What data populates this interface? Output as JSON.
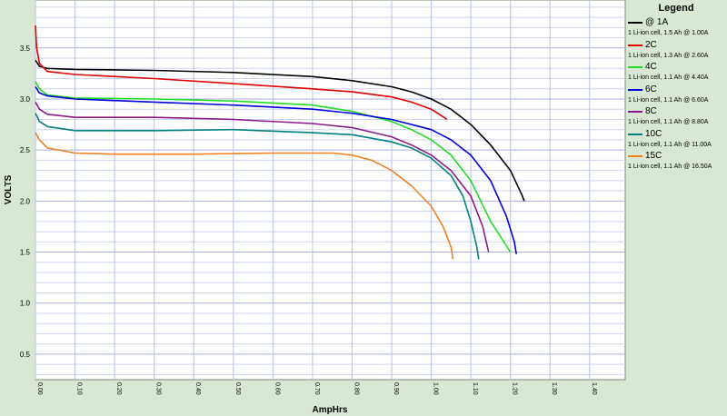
{
  "chart_data": {
    "type": "line",
    "title": "",
    "xlabel": "AmpHrs",
    "ylabel": "VOLTS",
    "xlim": [
      0.0,
      1.49
    ],
    "ylim": [
      0.25,
      3.97
    ],
    "x_ticks": [
      "0.00",
      "0.10",
      "0.20",
      "0.30",
      "0.40",
      "0.50",
      "0.60",
      "0.70",
      "0.80",
      "0.90",
      "1.00",
      "1.10",
      "1.20",
      "1.30",
      "1.40"
    ],
    "y_ticks": [
      "0.5",
      "1.0",
      "1.5",
      "2.0",
      "2.5",
      "3.0",
      "3.5"
    ],
    "grid": true,
    "legend_title": "Legend",
    "legend_position": "right",
    "series": [
      {
        "name": "@ 1A",
        "desc": "1 Li-ion cell, 1.5 Ah @ 1.00A",
        "color": "#000000",
        "points": [
          [
            0.0,
            3.38
          ],
          [
            0.01,
            3.32
          ],
          [
            0.03,
            3.3
          ],
          [
            0.1,
            3.29
          ],
          [
            0.3,
            3.28
          ],
          [
            0.5,
            3.26
          ],
          [
            0.7,
            3.22
          ],
          [
            0.8,
            3.18
          ],
          [
            0.9,
            3.12
          ],
          [
            0.95,
            3.07
          ],
          [
            1.0,
            3.0
          ],
          [
            1.05,
            2.9
          ],
          [
            1.1,
            2.75
          ],
          [
            1.15,
            2.55
          ],
          [
            1.2,
            2.3
          ],
          [
            1.23,
            2.05
          ],
          [
            1.235,
            2.0
          ]
        ]
      },
      {
        "name": "2C",
        "desc": "1 Li-ion cell, 1.3 Ah @ 2.60A",
        "color": "#e00000",
        "points": [
          [
            0.0,
            3.72
          ],
          [
            0.003,
            3.5
          ],
          [
            0.01,
            3.35
          ],
          [
            0.03,
            3.27
          ],
          [
            0.1,
            3.24
          ],
          [
            0.3,
            3.2
          ],
          [
            0.5,
            3.15
          ],
          [
            0.7,
            3.1
          ],
          [
            0.8,
            3.07
          ],
          [
            0.9,
            3.02
          ],
          [
            0.95,
            2.97
          ],
          [
            1.0,
            2.9
          ],
          [
            1.04,
            2.8
          ]
        ]
      },
      {
        "name": "4C",
        "desc": "1 Li-ion cell, 1.1 Ah @ 4.40A",
        "color": "#22dd22",
        "points": [
          [
            0.0,
            3.17
          ],
          [
            0.01,
            3.1
          ],
          [
            0.03,
            3.04
          ],
          [
            0.1,
            3.01
          ],
          [
            0.3,
            3.0
          ],
          [
            0.5,
            2.98
          ],
          [
            0.7,
            2.94
          ],
          [
            0.8,
            2.88
          ],
          [
            0.9,
            2.78
          ],
          [
            0.95,
            2.7
          ],
          [
            1.0,
            2.6
          ],
          [
            1.05,
            2.45
          ],
          [
            1.1,
            2.2
          ],
          [
            1.15,
            1.8
          ],
          [
            1.2,
            1.5
          ]
        ]
      },
      {
        "name": "6C",
        "desc": "1 Li-ion cell, 1.1 Ah @ 6.60A",
        "color": "#0000dd",
        "points": [
          [
            0.0,
            3.12
          ],
          [
            0.01,
            3.06
          ],
          [
            0.03,
            3.03
          ],
          [
            0.1,
            3.0
          ],
          [
            0.3,
            2.97
          ],
          [
            0.5,
            2.94
          ],
          [
            0.7,
            2.9
          ],
          [
            0.8,
            2.86
          ],
          [
            0.9,
            2.8
          ],
          [
            1.0,
            2.7
          ],
          [
            1.05,
            2.6
          ],
          [
            1.1,
            2.45
          ],
          [
            1.15,
            2.2
          ],
          [
            1.19,
            1.85
          ],
          [
            1.21,
            1.6
          ],
          [
            1.215,
            1.48
          ]
        ]
      },
      {
        "name": "8C",
        "desc": "1 Li-ion cell, 1.1 Ah @ 8.80A",
        "color": "#8a1a8a",
        "points": [
          [
            0.0,
            2.97
          ],
          [
            0.01,
            2.9
          ],
          [
            0.03,
            2.85
          ],
          [
            0.1,
            2.82
          ],
          [
            0.3,
            2.82
          ],
          [
            0.5,
            2.8
          ],
          [
            0.7,
            2.76
          ],
          [
            0.8,
            2.72
          ],
          [
            0.9,
            2.63
          ],
          [
            0.95,
            2.55
          ],
          [
            1.0,
            2.45
          ],
          [
            1.05,
            2.3
          ],
          [
            1.1,
            2.05
          ],
          [
            1.13,
            1.75
          ],
          [
            1.145,
            1.5
          ]
        ]
      },
      {
        "name": "10C",
        "desc": "1 Li-ion cell, 1.1 Ah @ 11.00A",
        "color": "#008080",
        "points": [
          [
            0.0,
            2.86
          ],
          [
            0.01,
            2.78
          ],
          [
            0.03,
            2.73
          ],
          [
            0.1,
            2.69
          ],
          [
            0.3,
            2.69
          ],
          [
            0.5,
            2.7
          ],
          [
            0.7,
            2.67
          ],
          [
            0.8,
            2.65
          ],
          [
            0.9,
            2.58
          ],
          [
            0.95,
            2.52
          ],
          [
            1.0,
            2.42
          ],
          [
            1.05,
            2.25
          ],
          [
            1.08,
            2.05
          ],
          [
            1.1,
            1.8
          ],
          [
            1.115,
            1.55
          ],
          [
            1.12,
            1.43
          ]
        ]
      },
      {
        "name": "15C",
        "desc": "1 Li-ion cell, 1.1 Ah @ 16.50A",
        "color": "#f08020",
        "points": [
          [
            0.0,
            2.67
          ],
          [
            0.01,
            2.6
          ],
          [
            0.03,
            2.52
          ],
          [
            0.1,
            2.47
          ],
          [
            0.2,
            2.46
          ],
          [
            0.4,
            2.46
          ],
          [
            0.6,
            2.47
          ],
          [
            0.75,
            2.47
          ],
          [
            0.8,
            2.45
          ],
          [
            0.85,
            2.4
          ],
          [
            0.9,
            2.3
          ],
          [
            0.95,
            2.15
          ],
          [
            1.0,
            1.95
          ],
          [
            1.03,
            1.75
          ],
          [
            1.05,
            1.55
          ],
          [
            1.055,
            1.43
          ]
        ]
      }
    ]
  }
}
